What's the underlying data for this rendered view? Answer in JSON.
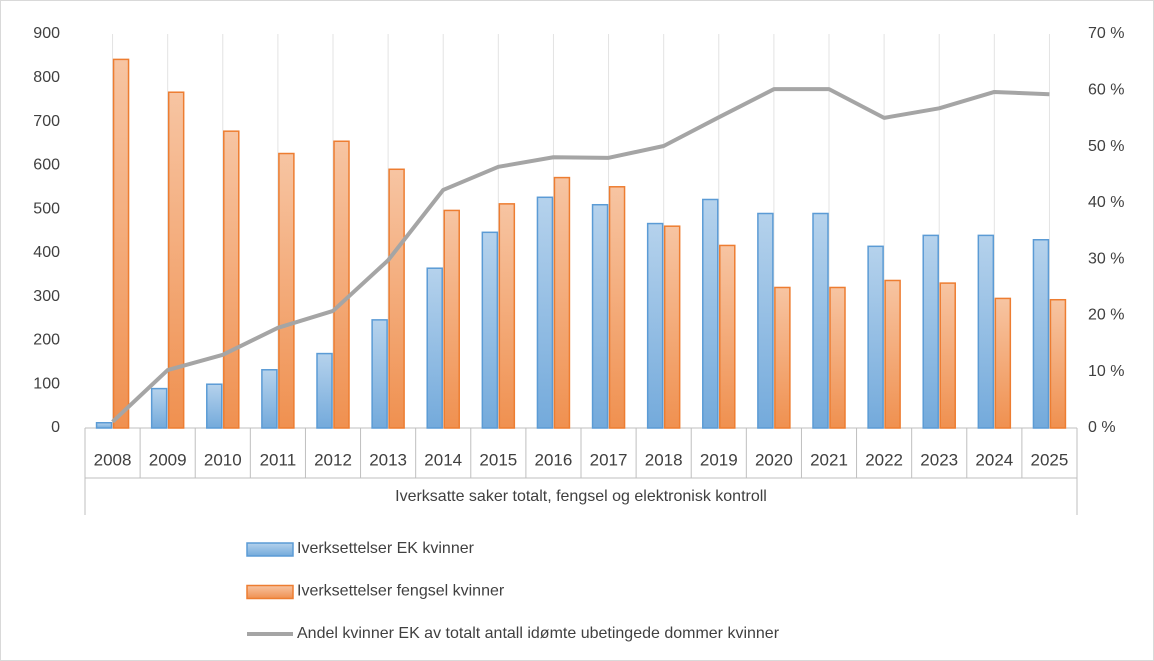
{
  "chart_data": {
    "type": "bar",
    "x_label": "Iverksatte saker totalt,  fengsel  og elektronisk  kontroll",
    "categories": [
      "2008",
      "2009",
      "2010",
      "2011",
      "2012",
      "2013",
      "2014",
      "2015",
      "2016",
      "2017",
      "2018",
      "2019",
      "2020",
      "2021",
      "2022",
      "2023",
      "2024",
      "2025"
    ],
    "series": [
      {
        "name": "Iverksettelser EK kvinner",
        "type": "bar",
        "color": "#5b9bd5",
        "values": [
          12,
          90,
          100,
          133,
          170,
          247,
          365,
          447,
          527,
          510,
          467,
          522,
          490,
          490,
          415,
          440,
          440,
          430
        ]
      },
      {
        "name": "Iverksettelser fengsel kvinner",
        "type": "bar",
        "color": "#ed7d31",
        "values": [
          842,
          767,
          678,
          627,
          655,
          591,
          497,
          512,
          572,
          551,
          461,
          417,
          321,
          321,
          337,
          331,
          296,
          293
        ]
      },
      {
        "name": "Andel kvinner EK av totalt antall idømte ubetingede dommer kvinner",
        "type": "line",
        "axis": "y2",
        "color": "#a5a5a5",
        "values": [
          1.1,
          10.3,
          13,
          17.8,
          20.8,
          29.8,
          42.3,
          46.4,
          48.1,
          48,
          50.1,
          55.2,
          60.2,
          60.2,
          55.1,
          56.8,
          59.7,
          59.3
        ]
      }
    ],
    "ylim": [
      0,
      900
    ],
    "yticks": [
      0,
      100,
      200,
      300,
      400,
      500,
      600,
      700,
      800,
      900
    ],
    "y2lim": [
      0,
      70
    ],
    "y2ticks": [
      {
        "value": 0,
        "label": "0 %"
      },
      {
        "value": 10,
        "label": "10 %"
      },
      {
        "value": 20,
        "label": "20 %"
      },
      {
        "value": 30,
        "label": "30 %"
      },
      {
        "value": 40,
        "label": "40 %"
      },
      {
        "value": 50,
        "label": "50 %"
      },
      {
        "value": 60,
        "label": "60 %"
      },
      {
        "value": 70,
        "label": "70 %"
      }
    ],
    "grid": true,
    "legend": "bottom"
  }
}
